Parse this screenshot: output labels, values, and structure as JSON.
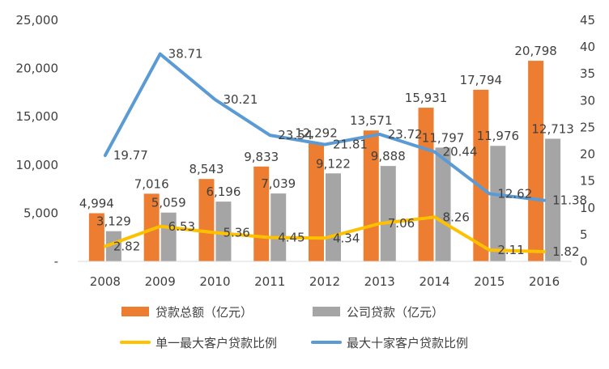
{
  "chart_data": {
    "type": "bar",
    "categories": [
      "2008",
      "2009",
      "2010",
      "2011",
      "2012",
      "2013",
      "2014",
      "2015",
      "2016"
    ],
    "bar_series": [
      {
        "name": "贷款总额（亿元）",
        "color": "#ED7D31",
        "values": [
          4994,
          7016,
          8543,
          9833,
          12292,
          13571,
          15931,
          17794,
          20798
        ],
        "labels": [
          "4,994",
          "7,016",
          "8,543",
          "9,833",
          "12,292",
          "13,571",
          "15,931",
          "17,794",
          "20,798"
        ]
      },
      {
        "name": "公司贷款（亿元）",
        "color": "#A5A5A5",
        "values": [
          3129,
          5059,
          6196,
          7039,
          9122,
          9888,
          11797,
          11976,
          12713
        ],
        "labels": [
          "3,129",
          "5,059",
          "6,196",
          "7,039",
          "9,122",
          "9,888",
          "11,797",
          "11,976",
          "12,713"
        ]
      }
    ],
    "line_series": [
      {
        "name": "单一最大客户贷款比例",
        "color": "#FFC000",
        "values": [
          2.82,
          6.53,
          5.36,
          4.45,
          4.34,
          7.06,
          8.26,
          2.11,
          1.82
        ],
        "labels": [
          "2.82",
          "6.53",
          "5.36",
          "4.45",
          "4.34",
          "7.06",
          "8.26",
          "2.11",
          "1.82"
        ]
      },
      {
        "name": "最大十家客户贷款比例",
        "color": "#5B9BD5",
        "values": [
          19.77,
          38.71,
          30.21,
          23.54,
          21.81,
          23.72,
          20.44,
          12.62,
          11.38
        ],
        "labels": [
          "19.77",
          "38.71",
          "30.21",
          "23.54",
          "21.81",
          "23.72",
          "20.44",
          "12.62",
          "11.38"
        ]
      }
    ],
    "left_axis": {
      "range": [
        0,
        25000
      ],
      "ticks": [
        "-",
        "5,000",
        "10,000",
        "15,000",
        "20,000",
        "25,000"
      ]
    },
    "right_axis": {
      "range": [
        0,
        45
      ],
      "ticks": [
        "0",
        "5",
        "10",
        "15",
        "20",
        "25",
        "30",
        "35",
        "40",
        "45"
      ]
    },
    "grid": false,
    "legend_position": "bottom",
    "title": "",
    "xlabel": "",
    "ylabel": ""
  }
}
